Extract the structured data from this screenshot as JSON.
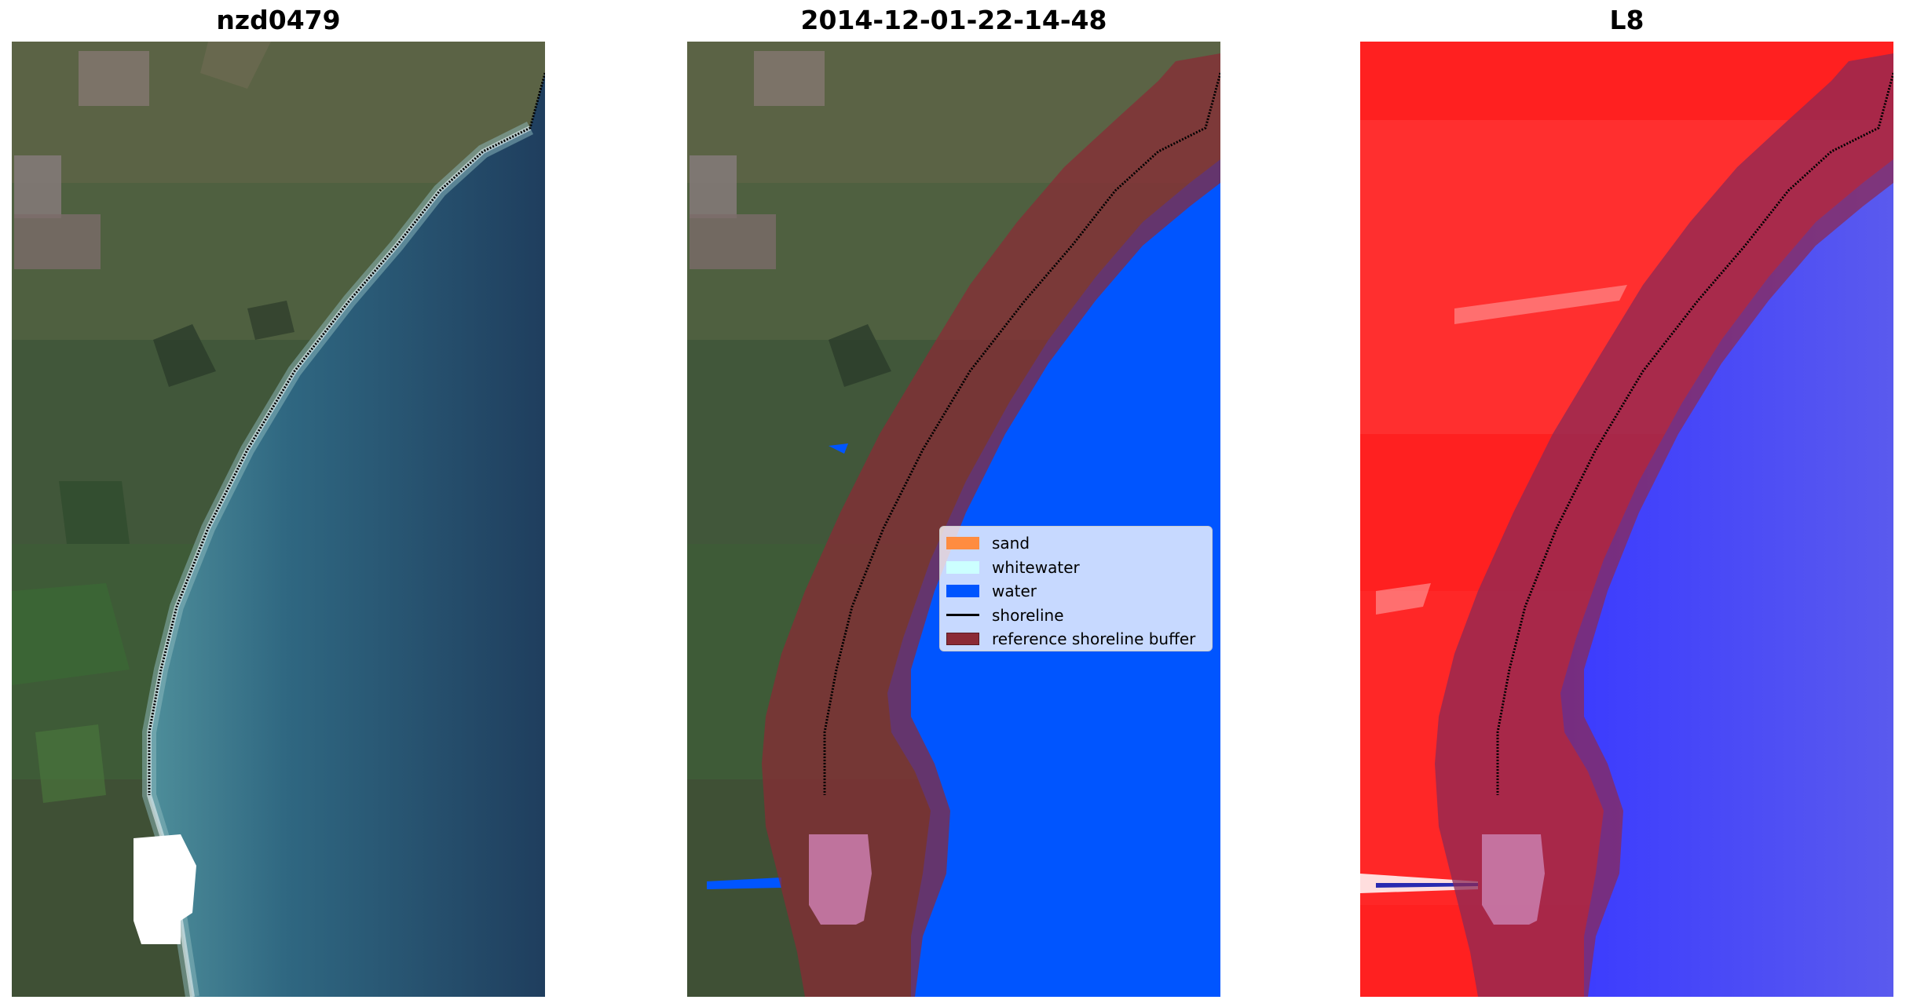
{
  "panels": [
    {
      "title": "nzd0479"
    },
    {
      "title": "2014-12-01-22-14-48"
    },
    {
      "title": "L8"
    }
  ],
  "legend": {
    "items": [
      {
        "label": "sand",
        "color": "#ff8c40"
      },
      {
        "label": "whitewater",
        "color": "#ccffff"
      },
      {
        "label": "water",
        "color": "#0055ff"
      },
      {
        "label": "shoreline",
        "color": "#000000"
      },
      {
        "label": "reference shoreline buffer",
        "color": "#8b2a35"
      }
    ]
  }
}
